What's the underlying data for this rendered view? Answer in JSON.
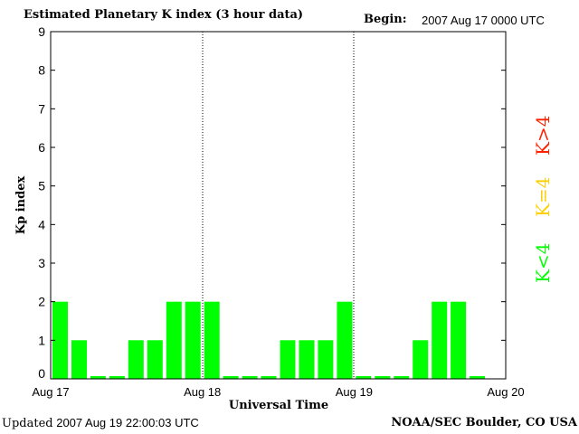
{
  "header": {
    "title": "Estimated Planetary K index (3 hour data)",
    "begin_label": "Begin:",
    "begin_value": "2007 Aug 17 0000 UTC"
  },
  "footer": {
    "updated_label": "Updated",
    "updated_value": "2007 Aug 19 22:00:03 UTC",
    "credit": "NOAA/SEC Boulder, CO USA"
  },
  "legend": {
    "high": {
      "label": "K>4",
      "color": "#ff2000"
    },
    "equal": {
      "label": "K=4",
      "color": "#ffd000"
    },
    "low": {
      "label": "K<4",
      "color": "#00ff00"
    }
  },
  "chart_data": {
    "type": "bar",
    "ylabel": "Kp index",
    "xlabel": "Universal Time",
    "ylim": [
      0,
      9
    ],
    "yticks": [
      "0",
      "1",
      "2",
      "3",
      "4",
      "5",
      "6",
      "7",
      "8",
      "9"
    ],
    "xticks": [
      "Aug 17",
      "Aug 18",
      "Aug 19",
      "Aug 20"
    ],
    "interval_hours": 3,
    "values": [
      2,
      1,
      0,
      0,
      1,
      1,
      2,
      2,
      2,
      0,
      0,
      0,
      1,
      1,
      1,
      2,
      0,
      0,
      0,
      1,
      2,
      2,
      0
    ],
    "bar_color": "#00ff00",
    "grid": false
  }
}
